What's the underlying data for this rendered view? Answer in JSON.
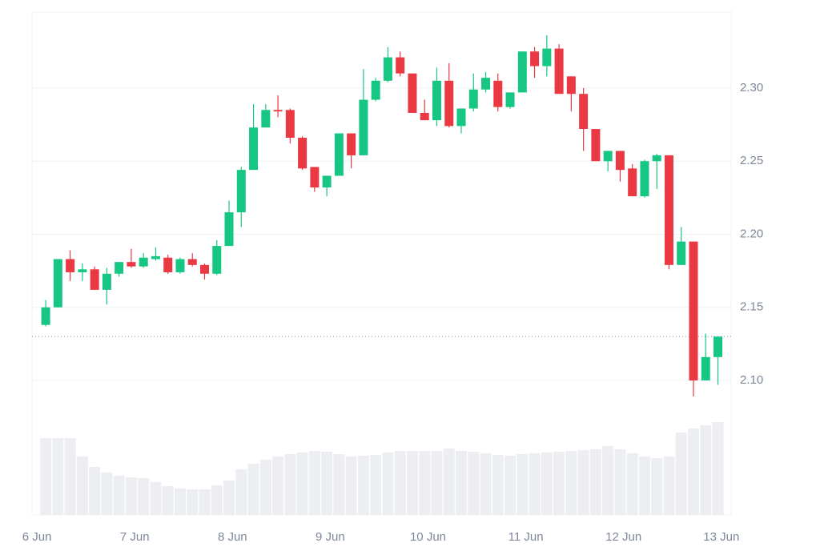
{
  "chart_data": {
    "type": "candlestick",
    "x": [
      0.09,
      0.215,
      0.34,
      0.465,
      0.59,
      0.715,
      0.84,
      0.965,
      1.09,
      1.215,
      1.34,
      1.465,
      1.59,
      1.715,
      1.84,
      1.965,
      2.09,
      2.215,
      2.34,
      2.465,
      2.59,
      2.715,
      2.84,
      2.965,
      3.09,
      3.215,
      3.34,
      3.465,
      3.59,
      3.715,
      3.84,
      3.965,
      4.09,
      4.215,
      4.34,
      4.465,
      4.59,
      4.715,
      4.84,
      4.965,
      5.09,
      5.215,
      5.34,
      5.465,
      5.59,
      5.715,
      5.84,
      5.965,
      6.09,
      6.215,
      6.34,
      6.465,
      6.59,
      6.715,
      6.84,
      6.965
    ],
    "open": [
      2.138,
      2.15,
      2.183,
      2.174,
      2.176,
      2.162,
      2.173,
      2.181,
      2.178,
      2.183,
      2.184,
      2.174,
      2.183,
      2.179,
      2.173,
      2.192,
      2.215,
      2.244,
      2.273,
      2.285,
      2.285,
      2.266,
      2.246,
      2.232,
      2.24,
      2.269,
      2.254,
      2.292,
      2.305,
      2.321,
      2.31,
      2.283,
      2.278,
      2.305,
      2.274,
      2.286,
      2.299,
      2.305,
      2.287,
      2.297,
      2.325,
      2.315,
      2.327,
      2.308,
      2.296,
      2.272,
      2.25,
      2.257,
      2.245,
      2.226,
      2.25,
      2.254,
      2.179,
      2.195,
      2.1,
      2.116
    ],
    "high": [
      2.155,
      2.183,
      2.189,
      2.18,
      2.178,
      2.177,
      2.181,
      2.19,
      2.187,
      2.191,
      2.186,
      2.184,
      2.187,
      2.18,
      2.196,
      2.223,
      2.246,
      2.289,
      2.289,
      2.295,
      2.286,
      2.267,
      2.246,
      2.24,
      2.269,
      2.269,
      2.313,
      2.307,
      2.328,
      2.325,
      2.31,
      2.292,
      2.314,
      2.317,
      2.286,
      2.31,
      2.311,
      2.31,
      2.297,
      2.325,
      2.328,
      2.336,
      2.33,
      2.308,
      2.3,
      2.272,
      2.257,
      2.257,
      2.248,
      2.251,
      2.255,
      2.254,
      2.205,
      2.195,
      2.132,
      2.13
    ],
    "low": [
      2.137,
      2.15,
      2.168,
      2.168,
      2.162,
      2.152,
      2.171,
      2.177,
      2.177,
      2.182,
      2.173,
      2.173,
      2.178,
      2.169,
      2.172,
      2.192,
      2.205,
      2.244,
      2.273,
      2.28,
      2.262,
      2.244,
      2.229,
      2.226,
      2.24,
      2.245,
      2.254,
      2.291,
      2.304,
      2.308,
      2.283,
      2.278,
      2.274,
      2.273,
      2.269,
      2.284,
      2.297,
      2.284,
      2.286,
      2.297,
      2.307,
      2.308,
      2.296,
      2.284,
      2.257,
      2.25,
      2.243,
      2.236,
      2.226,
      2.225,
      2.231,
      2.176,
      2.179,
      2.089,
      2.1,
      2.097
    ],
    "close": [
      2.15,
      2.183,
      2.174,
      2.176,
      2.162,
      2.173,
      2.181,
      2.178,
      2.184,
      2.185,
      2.174,
      2.183,
      2.179,
      2.173,
      2.192,
      2.215,
      2.244,
      2.273,
      2.285,
      2.284,
      2.266,
      2.245,
      2.232,
      2.24,
      2.269,
      2.254,
      2.292,
      2.305,
      2.321,
      2.31,
      2.283,
      2.278,
      2.305,
      2.274,
      2.286,
      2.299,
      2.307,
      2.287,
      2.297,
      2.325,
      2.315,
      2.327,
      2.296,
      2.296,
      2.272,
      2.25,
      2.257,
      2.244,
      2.226,
      2.25,
      2.254,
      2.179,
      2.195,
      2.1,
      2.116,
      2.13
    ],
    "volume": [
      96,
      96,
      96,
      73,
      60,
      53,
      49,
      47,
      46,
      41,
      36,
      33,
      32,
      32,
      37,
      43,
      57,
      64,
      69,
      73,
      76,
      78,
      80,
      79,
      76,
      73,
      74,
      75,
      78,
      80,
      80,
      80,
      80,
      83,
      80,
      79,
      77,
      75,
      74,
      76,
      77,
      78,
      79,
      80,
      81,
      82,
      86,
      82,
      77,
      73,
      71,
      73,
      103,
      108,
      112,
      116
    ],
    "volume_lim": [
      0,
      120
    ],
    "up_color": "#16c784",
    "down_color": "#ea3943",
    "volume_color": "#eceef2",
    "last_price": 2.13,
    "xlim": [
      -0.05,
      7.1
    ],
    "xticks": [
      {
        "value": 0,
        "label": "6 Jun"
      },
      {
        "value": 1,
        "label": "7 Jun"
      },
      {
        "value": 2,
        "label": "8 Jun"
      },
      {
        "value": 3,
        "label": "9 Jun"
      },
      {
        "value": 4,
        "label": "10 Jun"
      },
      {
        "value": 5,
        "label": "11 Jun"
      },
      {
        "value": 6,
        "label": "12 Jun"
      },
      {
        "value": 7,
        "label": "13 Jun"
      }
    ],
    "ylim": [
      2.008,
      2.352
    ],
    "yticks": [
      {
        "value": 2.1,
        "label": "2.10"
      },
      {
        "value": 2.15,
        "label": "2.15"
      },
      {
        "value": 2.2,
        "label": "2.20"
      },
      {
        "value": 2.25,
        "label": "2.25"
      },
      {
        "value": 2.3,
        "label": "2.30"
      }
    ],
    "grid": true
  }
}
